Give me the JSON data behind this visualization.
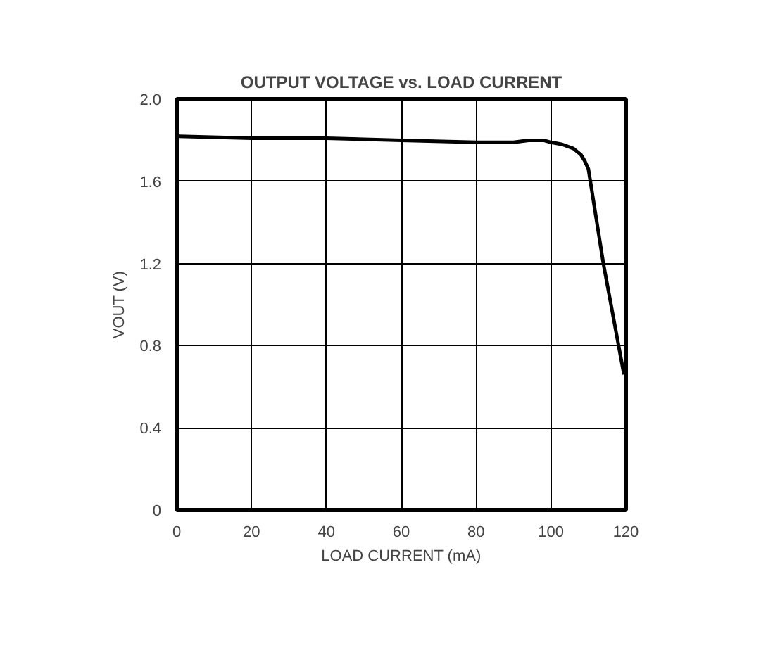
{
  "chart_data": {
    "type": "line",
    "title": "OUTPUT VOLTAGE vs. LOAD CURRENT",
    "xlabel": "LOAD CURRENT (mA)",
    "ylabel": "VOUT (V)",
    "series": [
      {
        "color": "#000000",
        "x": [
          0,
          20,
          40,
          60,
          80,
          90,
          94,
          98,
          100,
          103,
          106,
          108,
          109,
          110,
          114,
          119.5
        ],
        "values": [
          1.82,
          1.81,
          1.81,
          1.8,
          1.79,
          1.79,
          1.8,
          1.8,
          1.79,
          1.78,
          1.76,
          1.73,
          1.7,
          1.66,
          1.2,
          0.66
        ]
      }
    ],
    "xlim": [
      0,
      120
    ],
    "ylim": [
      0,
      2.0
    ],
    "xticks": [
      0,
      20,
      40,
      60,
      80,
      100,
      120
    ],
    "yticks": [
      0,
      0.4,
      0.8,
      1.2,
      1.6,
      {
        "value": 2.0,
        "label": "2.0"
      }
    ],
    "grid": true,
    "marker": "none",
    "line_style": "solid"
  }
}
